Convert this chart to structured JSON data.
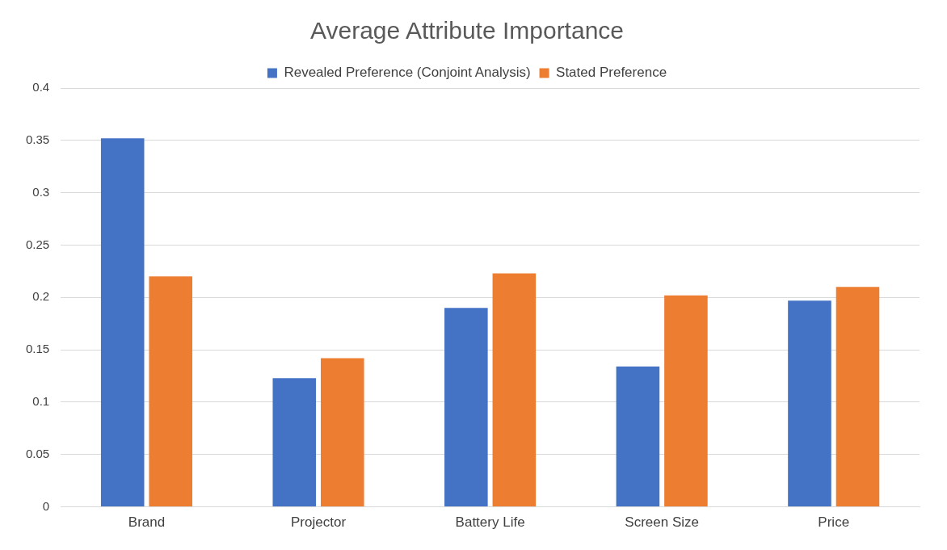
{
  "chart_data": {
    "type": "bar",
    "title": "Average Attribute Importance",
    "categories": [
      "Brand",
      "Projector",
      "Battery Life",
      "Screen Size",
      "Price"
    ],
    "series": [
      {
        "name": "Revealed Preference (Conjoint Analysis)",
        "color": "#4472c4",
        "values": [
          0.352,
          0.123,
          0.19,
          0.134,
          0.197
        ]
      },
      {
        "name": "Stated Preference",
        "color": "#ed7d31",
        "values": [
          0.22,
          0.142,
          0.223,
          0.202,
          0.21
        ]
      }
    ],
    "ylim": [
      0,
      0.4
    ],
    "yticks": [
      0,
      0.05,
      0.1,
      0.15,
      0.2,
      0.25,
      0.3,
      0.35,
      0.4
    ],
    "grid": "y",
    "legend": "top"
  }
}
